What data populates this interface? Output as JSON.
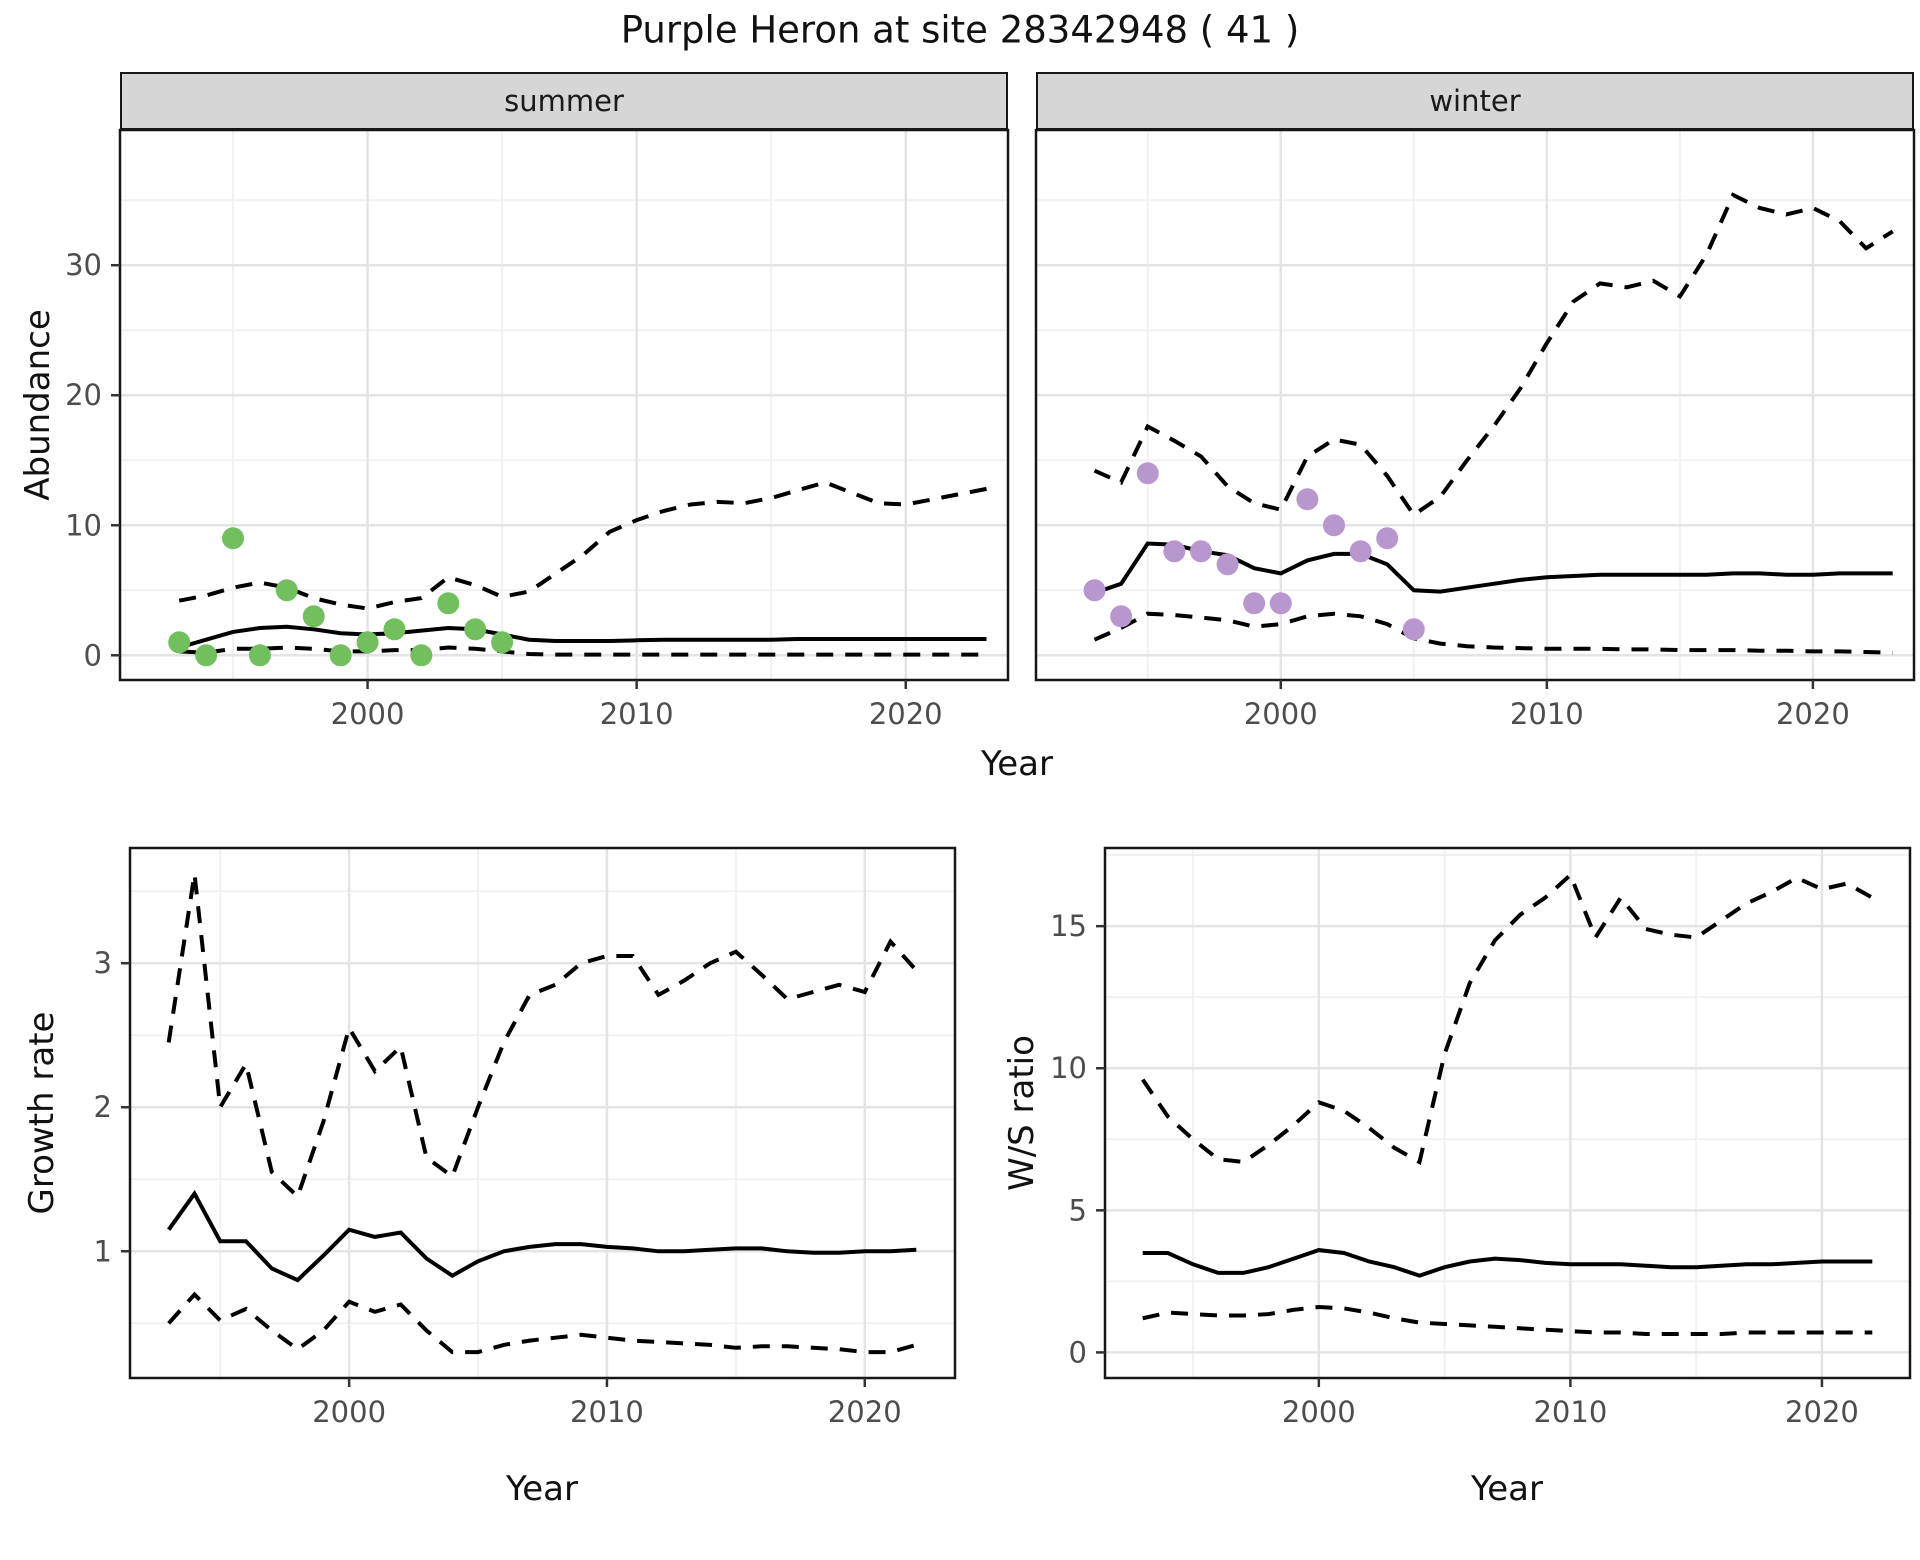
{
  "title": "Purple Heron at site 28342948 ( 41 )",
  "colors": {
    "summer_points": "#72bf5e",
    "winter_points": "#b897cf",
    "line": "#000000",
    "strip_bg": "#d6d6d6",
    "grid_major": "#e4e4e4",
    "grid_minor": "#f1f1f1",
    "tick_label": "#4d4d4d",
    "panel_border": "#171717"
  },
  "chart_data": [
    {
      "id": "summer",
      "type": "line",
      "facet_label": "summer",
      "xlabel": "Year",
      "ylabel": "Abundance",
      "xlim": [
        1990.8,
        2023.8
      ],
      "ylim": [
        -1.9,
        40.4
      ],
      "x_ticks": [
        {
          "value": 2000,
          "label": "2000"
        },
        {
          "value": 2010,
          "label": "2010"
        },
        {
          "value": 2020,
          "label": "2020"
        }
      ],
      "x_minor": [
        1995,
        2005,
        2015
      ],
      "y_ticks": [
        {
          "value": 0,
          "label": "0"
        },
        {
          "value": 10,
          "label": "10"
        },
        {
          "value": 20,
          "label": "20"
        },
        {
          "value": 30,
          "label": "30"
        }
      ],
      "y_minor": [
        5,
        15,
        25,
        35
      ],
      "years": [
        1993,
        1994,
        1995,
        1996,
        1997,
        1998,
        1999,
        2000,
        2001,
        2002,
        2003,
        2004,
        2005,
        2006,
        2007,
        2008,
        2009,
        2010,
        2011,
        2012,
        2013,
        2014,
        2015,
        2016,
        2017,
        2018,
        2019,
        2020,
        2021,
        2022,
        2023
      ],
      "series": [
        {
          "name": "fit",
          "style": "solid",
          "values": [
            0.6,
            1.2,
            1.8,
            2.1,
            2.2,
            2.0,
            1.7,
            1.6,
            1.7,
            1.9,
            2.1,
            2.0,
            1.6,
            1.2,
            1.1,
            1.1,
            1.1,
            1.15,
            1.2,
            1.2,
            1.2,
            1.2,
            1.2,
            1.25,
            1.25,
            1.25,
            1.25,
            1.25,
            1.25,
            1.25,
            1.25
          ]
        },
        {
          "name": "upper-ci",
          "style": "dashed",
          "values": [
            4.2,
            4.6,
            5.2,
            5.6,
            5.2,
            4.4,
            3.9,
            3.6,
            4.1,
            4.4,
            6.0,
            5.4,
            4.5,
            4.9,
            6.3,
            7.7,
            9.5,
            10.4,
            11.1,
            11.6,
            11.8,
            11.7,
            12.1,
            12.7,
            13.3,
            12.5,
            11.7,
            11.6,
            12.0,
            12.4,
            12.8
          ]
        },
        {
          "name": "lower-ci",
          "style": "dashed",
          "values": [
            0.3,
            0.2,
            0.5,
            0.5,
            0.6,
            0.5,
            0.3,
            0.3,
            0.4,
            0.4,
            0.6,
            0.5,
            0.3,
            0.1,
            0.05,
            0.05,
            0.05,
            0.05,
            0.05,
            0.05,
            0.05,
            0.05,
            0.05,
            0.05,
            0.05,
            0.05,
            0.05,
            0.05,
            0.05,
            0.05,
            0.05
          ]
        }
      ],
      "points": {
        "name": "observed-counts",
        "color_key": "summer_points",
        "years": [
          1993,
          1994,
          1995,
          1996,
          1997,
          1998,
          1999,
          2000,
          2001,
          2002,
          2003,
          2004,
          2005
        ],
        "values": [
          1,
          0,
          9,
          0,
          5,
          3,
          0,
          1,
          2,
          0,
          4,
          2,
          1
        ]
      }
    },
    {
      "id": "winter",
      "type": "line",
      "facet_label": "winter",
      "xlabel": "Year",
      "ylabel": "Abundance",
      "xlim": [
        1990.8,
        2023.8
      ],
      "ylim": [
        -1.9,
        40.4
      ],
      "x_ticks": [
        {
          "value": 2000,
          "label": "2000"
        },
        {
          "value": 2010,
          "label": "2010"
        },
        {
          "value": 2020,
          "label": "2020"
        }
      ],
      "x_minor": [
        1995,
        2005,
        2015
      ],
      "y_ticks": [
        {
          "value": 0,
          "label": "0"
        },
        {
          "value": 10,
          "label": "10"
        },
        {
          "value": 20,
          "label": "20"
        },
        {
          "value": 30,
          "label": "30"
        }
      ],
      "y_minor": [
        5,
        15,
        25,
        35
      ],
      "years": [
        1993,
        1994,
        1995,
        1996,
        1997,
        1998,
        1999,
        2000,
        2001,
        2002,
        2003,
        2004,
        2005,
        2006,
        2007,
        2008,
        2009,
        2010,
        2011,
        2012,
        2013,
        2014,
        2015,
        2016,
        2017,
        2018,
        2019,
        2020,
        2021,
        2022,
        2023
      ],
      "series": [
        {
          "name": "fit",
          "style": "solid",
          "values": [
            4.8,
            5.5,
            8.6,
            8.5,
            8.0,
            7.7,
            6.7,
            6.3,
            7.3,
            7.8,
            7.8,
            7.0,
            5.0,
            4.9,
            5.2,
            5.5,
            5.8,
            6.0,
            6.1,
            6.2,
            6.2,
            6.2,
            6.2,
            6.2,
            6.3,
            6.3,
            6.2,
            6.2,
            6.3,
            6.3,
            6.3
          ]
        },
        {
          "name": "upper-ci",
          "style": "dashed",
          "values": [
            14.2,
            13.3,
            17.6,
            16.5,
            15.3,
            13.0,
            11.7,
            11.2,
            15.3,
            16.6,
            16.2,
            13.8,
            10.8,
            12.2,
            15.0,
            17.6,
            20.5,
            24.0,
            27.2,
            28.6,
            28.3,
            28.8,
            27.6,
            30.8,
            35.4,
            34.4,
            33.9,
            34.4,
            33.4,
            31.3,
            32.6
          ]
        },
        {
          "name": "lower-ci",
          "style": "dashed",
          "values": [
            1.2,
            2.1,
            3.2,
            3.1,
            2.9,
            2.7,
            2.2,
            2.4,
            3.0,
            3.2,
            3.0,
            2.4,
            1.3,
            0.9,
            0.7,
            0.6,
            0.55,
            0.5,
            0.5,
            0.5,
            0.45,
            0.45,
            0.4,
            0.4,
            0.4,
            0.35,
            0.35,
            0.3,
            0.3,
            0.25,
            0.2
          ]
        }
      ],
      "points": {
        "name": "observed-counts",
        "color_key": "winter_points",
        "years": [
          1993,
          1994,
          1995,
          1996,
          1997,
          1998,
          1999,
          2000,
          2001,
          2002,
          2003,
          2004,
          2005
        ],
        "values": [
          5,
          3,
          14,
          8,
          8,
          7,
          4,
          4,
          12,
          10,
          8,
          9,
          2
        ]
      }
    },
    {
      "id": "growth",
      "type": "line",
      "facet_label": "",
      "xlabel": "Year",
      "ylabel": "Growth rate",
      "xlim": [
        1991.5,
        2023.5
      ],
      "ylim": [
        0.12,
        3.8
      ],
      "x_ticks": [
        {
          "value": 2000,
          "label": "2000"
        },
        {
          "value": 2010,
          "label": "2010"
        },
        {
          "value": 2020,
          "label": "2020"
        }
      ],
      "x_minor": [
        1995,
        2005,
        2015
      ],
      "y_ticks": [
        {
          "value": 1,
          "label": "1"
        },
        {
          "value": 2,
          "label": "2"
        },
        {
          "value": 3,
          "label": "3"
        }
      ],
      "y_minor": [
        0.5,
        1.5,
        2.5,
        3.5
      ],
      "years": [
        1993,
        1994,
        1995,
        1996,
        1997,
        1998,
        1999,
        2000,
        2001,
        2002,
        2003,
        2004,
        2005,
        2006,
        2007,
        2008,
        2009,
        2010,
        2011,
        2012,
        2013,
        2014,
        2015,
        2016,
        2017,
        2018,
        2019,
        2020,
        2021,
        2022
      ],
      "series": [
        {
          "name": "fit",
          "style": "solid",
          "values": [
            1.15,
            1.4,
            1.07,
            1.07,
            0.88,
            0.8,
            0.97,
            1.15,
            1.1,
            1.13,
            0.95,
            0.83,
            0.93,
            1.0,
            1.03,
            1.05,
            1.05,
            1.03,
            1.02,
            1.0,
            1.0,
            1.01,
            1.02,
            1.02,
            1.0,
            0.99,
            0.99,
            1.0,
            1.0,
            1.01
          ]
        },
        {
          "name": "upper-ci",
          "style": "dashed",
          "values": [
            2.45,
            3.62,
            2.0,
            2.3,
            1.55,
            1.38,
            1.9,
            2.55,
            2.25,
            2.42,
            1.65,
            1.52,
            2.0,
            2.45,
            2.78,
            2.85,
            3.0,
            3.05,
            3.05,
            2.78,
            2.88,
            3.0,
            3.08,
            2.92,
            2.75,
            2.8,
            2.85,
            2.8,
            3.15,
            2.95
          ]
        },
        {
          "name": "lower-ci",
          "style": "dashed",
          "values": [
            0.5,
            0.7,
            0.52,
            0.6,
            0.45,
            0.32,
            0.45,
            0.65,
            0.58,
            0.63,
            0.45,
            0.3,
            0.3,
            0.35,
            0.38,
            0.4,
            0.42,
            0.4,
            0.38,
            0.37,
            0.36,
            0.35,
            0.33,
            0.34,
            0.34,
            0.33,
            0.32,
            0.3,
            0.3,
            0.35
          ]
        }
      ],
      "points": null
    },
    {
      "id": "ratio",
      "type": "line",
      "facet_label": "",
      "xlabel": "Year",
      "ylabel": "W/S ratio",
      "xlim": [
        1991.5,
        2023.5
      ],
      "ylim": [
        -0.9,
        17.75
      ],
      "x_ticks": [
        {
          "value": 2000,
          "label": "2000"
        },
        {
          "value": 2010,
          "label": "2010"
        },
        {
          "value": 2020,
          "label": "2020"
        }
      ],
      "x_minor": [
        1995,
        2005,
        2015
      ],
      "y_ticks": [
        {
          "value": 0,
          "label": "0"
        },
        {
          "value": 5,
          "label": "5"
        },
        {
          "value": 10,
          "label": "10"
        },
        {
          "value": 15,
          "label": "15"
        }
      ],
      "y_minor": [
        2.5,
        7.5,
        12.5,
        17.5
      ],
      "years": [
        1993,
        1994,
        1995,
        1996,
        1997,
        1998,
        1999,
        2000,
        2001,
        2002,
        2003,
        2004,
        2005,
        2006,
        2007,
        2008,
        2009,
        2010,
        2011,
        2012,
        2013,
        2014,
        2015,
        2016,
        2017,
        2018,
        2019,
        2020,
        2021,
        2022
      ],
      "series": [
        {
          "name": "fit",
          "style": "solid",
          "values": [
            3.5,
            3.5,
            3.1,
            2.8,
            2.8,
            3.0,
            3.3,
            3.6,
            3.5,
            3.2,
            3.0,
            2.7,
            3.0,
            3.2,
            3.3,
            3.25,
            3.15,
            3.1,
            3.1,
            3.1,
            3.05,
            3.0,
            3.0,
            3.05,
            3.1,
            3.1,
            3.15,
            3.2,
            3.2,
            3.2
          ]
        },
        {
          "name": "upper-ci",
          "style": "dashed",
          "values": [
            9.6,
            8.3,
            7.5,
            6.8,
            6.7,
            7.3,
            8.0,
            8.8,
            8.5,
            7.9,
            7.2,
            6.7,
            10.5,
            13.0,
            14.5,
            15.4,
            16.0,
            16.8,
            14.6,
            16.0,
            14.9,
            14.7,
            14.6,
            15.2,
            15.8,
            16.2,
            16.7,
            16.3,
            16.5,
            16.0
          ]
        },
        {
          "name": "lower-ci",
          "style": "dashed",
          "values": [
            1.2,
            1.4,
            1.35,
            1.3,
            1.3,
            1.35,
            1.5,
            1.6,
            1.55,
            1.4,
            1.2,
            1.05,
            1.0,
            0.95,
            0.9,
            0.85,
            0.8,
            0.75,
            0.7,
            0.7,
            0.65,
            0.65,
            0.65,
            0.65,
            0.7,
            0.7,
            0.7,
            0.7,
            0.7,
            0.7
          ]
        }
      ],
      "points": null
    }
  ]
}
